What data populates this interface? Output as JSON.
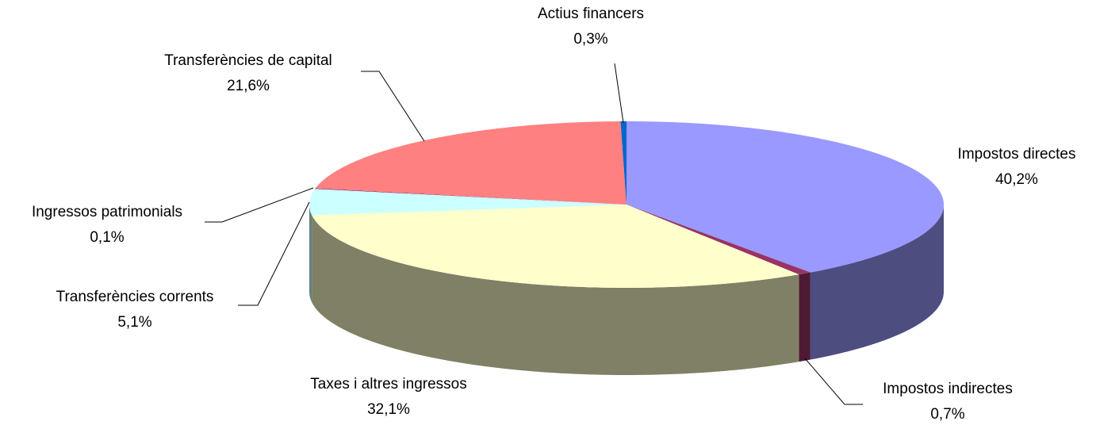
{
  "chart_data": {
    "type": "pie",
    "three_d": true,
    "categories": [
      "Impostos directes",
      "Impostos indirectes",
      "Taxes i altres ingressos",
      "Transferències corrents",
      "Ingressos patrimonials",
      "Transferències de capital",
      "Actius financers"
    ],
    "values": [
      40.2,
      0.7,
      32.1,
      5.1,
      0.1,
      21.6,
      0.3
    ],
    "value_labels": [
      "40,2%",
      "0,7%",
      "32,1%",
      "5,1%",
      "0,1%",
      "21,6%",
      "0,3%"
    ],
    "colors": [
      "#9999ff",
      "#993366",
      "#ffffcc",
      "#ccffff",
      "#660066",
      "#ff8080",
      "#0066cc"
    ]
  }
}
